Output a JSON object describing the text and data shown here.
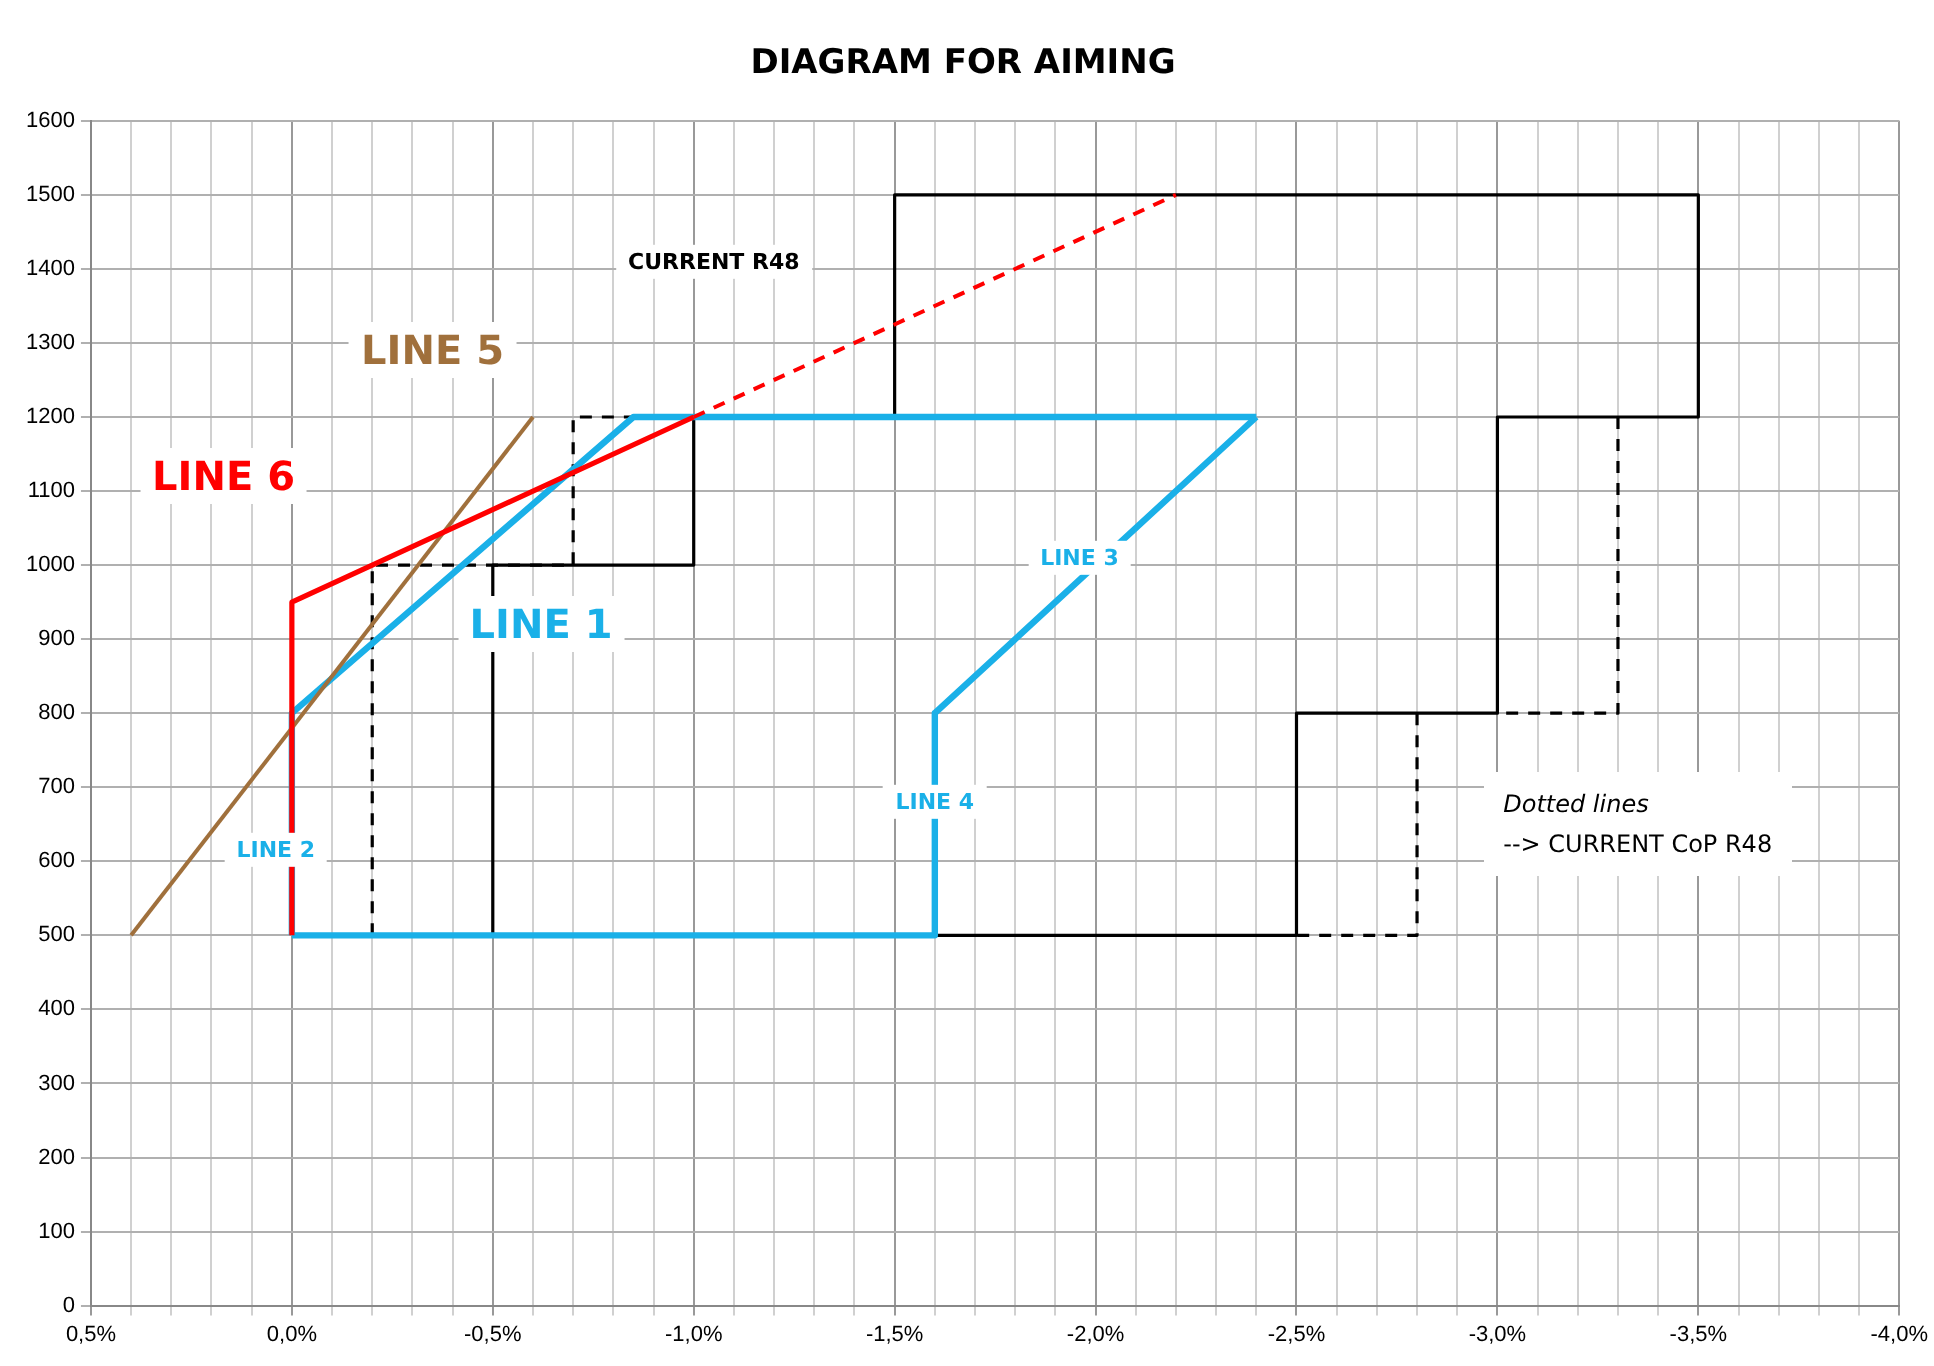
{
  "chart_data": {
    "type": "line",
    "title": "DIAGRAM FOR AIMING",
    "xlim": [
      0.5,
      -4.0
    ],
    "xticks": [
      {
        "value": 0.5,
        "label": "0,5%"
      },
      {
        "value": 0.4,
        "label": null
      },
      {
        "value": 0.3,
        "label": null
      },
      {
        "value": 0.2,
        "label": null
      },
      {
        "value": 0.1,
        "label": null
      },
      {
        "value": 0,
        "label": "0,0%"
      },
      {
        "value": -0.1,
        "label": null
      },
      {
        "value": -0.2,
        "label": null
      },
      {
        "value": -0.3,
        "label": null
      },
      {
        "value": -0.4,
        "label": null
      },
      {
        "value": -0.5,
        "label": "-0,5%"
      },
      {
        "value": -0.6,
        "label": null
      },
      {
        "value": -0.7,
        "label": null
      },
      {
        "value": -0.8,
        "label": null
      },
      {
        "value": -0.9,
        "label": null
      },
      {
        "value": -1.0,
        "label": "-1,0%"
      },
      {
        "value": -1.1,
        "label": null
      },
      {
        "value": -1.2,
        "label": null
      },
      {
        "value": -1.3,
        "label": null
      },
      {
        "value": -1.4,
        "label": null
      },
      {
        "value": -1.5,
        "label": "-1,5%"
      },
      {
        "value": -1.6,
        "label": null
      },
      {
        "value": -1.7,
        "label": null
      },
      {
        "value": -1.8,
        "label": null
      },
      {
        "value": -1.9,
        "label": null
      },
      {
        "value": -2.0,
        "label": "-2,0%"
      },
      {
        "value": -2.1,
        "label": null
      },
      {
        "value": -2.2,
        "label": null
      },
      {
        "value": -2.3,
        "label": null
      },
      {
        "value": -2.4,
        "label": null
      },
      {
        "value": -2.5,
        "label": "-2,5%"
      },
      {
        "value": -2.6,
        "label": null
      },
      {
        "value": -2.7,
        "label": null
      },
      {
        "value": -2.8,
        "label": null
      },
      {
        "value": -2.9,
        "label": null
      },
      {
        "value": -3.0,
        "label": "-3,0%"
      },
      {
        "value": -3.1,
        "label": null
      },
      {
        "value": -3.2,
        "label": null
      },
      {
        "value": -3.3,
        "label": null
      },
      {
        "value": -3.4,
        "label": null
      },
      {
        "value": -3.5,
        "label": "-3,5%"
      },
      {
        "value": -3.6,
        "label": null
      },
      {
        "value": -3.7,
        "label": null
      },
      {
        "value": -3.8,
        "label": null
      },
      {
        "value": -3.9,
        "label": null
      },
      {
        "value": -4.0,
        "label": "-4,0%"
      }
    ],
    "ylim": [
      0,
      1600
    ],
    "yticks": [
      0,
      100,
      200,
      300,
      400,
      500,
      600,
      700,
      800,
      900,
      1000,
      1100,
      1200,
      1300,
      1400,
      1500,
      1600
    ],
    "grid": true,
    "legend": false,
    "marker": "none",
    "series": [
      {
        "color": "#000000",
        "line_style": "solid",
        "x": [
          -0.5,
          -0.5,
          -1.0,
          -1.0,
          -1.5,
          -1.5,
          -3.5,
          -3.5
        ],
        "values": [
          500,
          1000,
          1000,
          1200,
          1200,
          1500,
          1500,
          1200
        ]
      },
      {
        "color": "#000000",
        "line_style": "solid",
        "x": [
          -3.5,
          -3.0,
          -3.0,
          -2.5,
          -2.5,
          -1.6
        ],
        "values": [
          1200,
          1200,
          800,
          800,
          500,
          500
        ]
      },
      {
        "color": "#000000",
        "line_style": "dashed",
        "x": [
          -0.2,
          -0.2,
          -0.7,
          -0.7,
          -0.85
        ],
        "values": [
          500,
          1000,
          1000,
          1200,
          1200
        ]
      },
      {
        "color": "#000000",
        "line_style": "dashed",
        "x": [
          -3.3,
          -3.3,
          -3.0,
          null,
          -2.8,
          -2.8,
          -2.5
        ],
        "values": [
          1200,
          800,
          800,
          null,
          800,
          500,
          500
        ]
      },
      {
        "color": "#1ab0e8",
        "line_style": "solid",
        "x": [
          0,
          0,
          -0.85,
          -2.4
        ],
        "values": [
          500,
          800,
          1200,
          1200
        ]
      },
      {
        "color": "#1ab0e8",
        "line_style": "solid",
        "x": [
          -2.4,
          -1.6,
          -1.6,
          0
        ],
        "values": [
          1200,
          800,
          500,
          500
        ]
      },
      {
        "color": "#a0703c",
        "line_style": "solid",
        "x": [
          0.4,
          -0.6
        ],
        "values": [
          500,
          1200
        ]
      },
      {
        "color": "#ff0000",
        "line_style": "solid",
        "x": [
          0,
          0,
          -0.2,
          -1.0
        ],
        "values": [
          500,
          950,
          1000,
          1200
        ]
      },
      {
        "color": "#ff0000",
        "line_style": "dashed",
        "x": [
          -1.0,
          -2.2
        ],
        "values": [
          1200,
          1500
        ]
      }
    ],
    "annotations": [
      "LINE 1",
      "LINE 2",
      "LINE 3",
      "LINE 4",
      "LINE 5",
      "LINE 6",
      "CURRENT R48",
      "Dotted lines\n--> CURRENT CoP R48"
    ]
  }
}
